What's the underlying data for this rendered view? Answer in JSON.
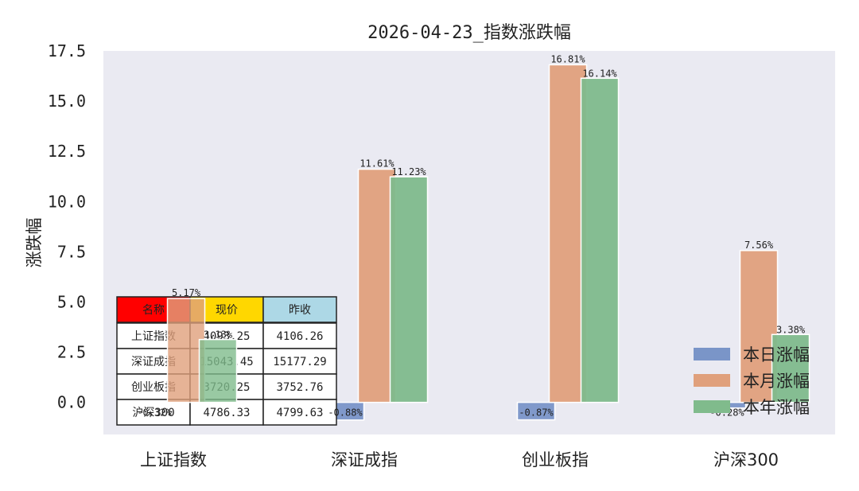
{
  "chart_data": {
    "type": "bar",
    "title": "2026-04-23_指数涨跌幅",
    "xlabel": "",
    "ylabel": "涨跌幅",
    "categories": [
      "上证指数",
      "深证成指",
      "创业板指",
      "沪深300"
    ],
    "series": [
      {
        "name": "本日涨幅",
        "color": "#7a95c8",
        "values": [
          -0.32,
          -0.88,
          -0.87,
          -0.28
        ],
        "labels": [
          "-0.32%",
          "-0.88%",
          "-0.87%",
          "-0.28%"
        ]
      },
      {
        "name": "本月涨幅",
        "color": "#e0a07c",
        "values": [
          5.17,
          11.61,
          16.81,
          7.56
        ],
        "labels": [
          "5.17%",
          "11.61%",
          "16.81%",
          "7.56%"
        ]
      },
      {
        "name": "本年涨幅",
        "color": "#80bb8c",
        "values": [
          3.13,
          11.23,
          16.14,
          3.38
        ],
        "labels": [
          "3.13%",
          "11.23%",
          "16.14%",
          "3.38%"
        ]
      }
    ],
    "ylim": [
      -1.6,
      17.5
    ],
    "yticks": [
      "0.0",
      "2.5",
      "5.0",
      "7.5",
      "10.0",
      "12.5",
      "15.0",
      "17.5"
    ],
    "ytick_values": [
      0,
      2.5,
      5,
      7.5,
      10,
      12.5,
      15,
      17.5
    ],
    "grid": false,
    "legend_position": "lower-right",
    "table": {
      "columns": [
        "名称",
        "现价",
        "昨收"
      ],
      "header_colors": [
        "#ff0000",
        "#ffd700",
        "#add8e6"
      ],
      "rows": [
        [
          "上证指数",
          "4093.25",
          "4106.26"
        ],
        [
          "深证成指",
          "15043.45",
          "15177.29"
        ],
        [
          "创业板指",
          "3720.25",
          "3752.76"
        ],
        [
          "沪深300",
          "4786.33",
          "4799.63"
        ]
      ]
    }
  }
}
